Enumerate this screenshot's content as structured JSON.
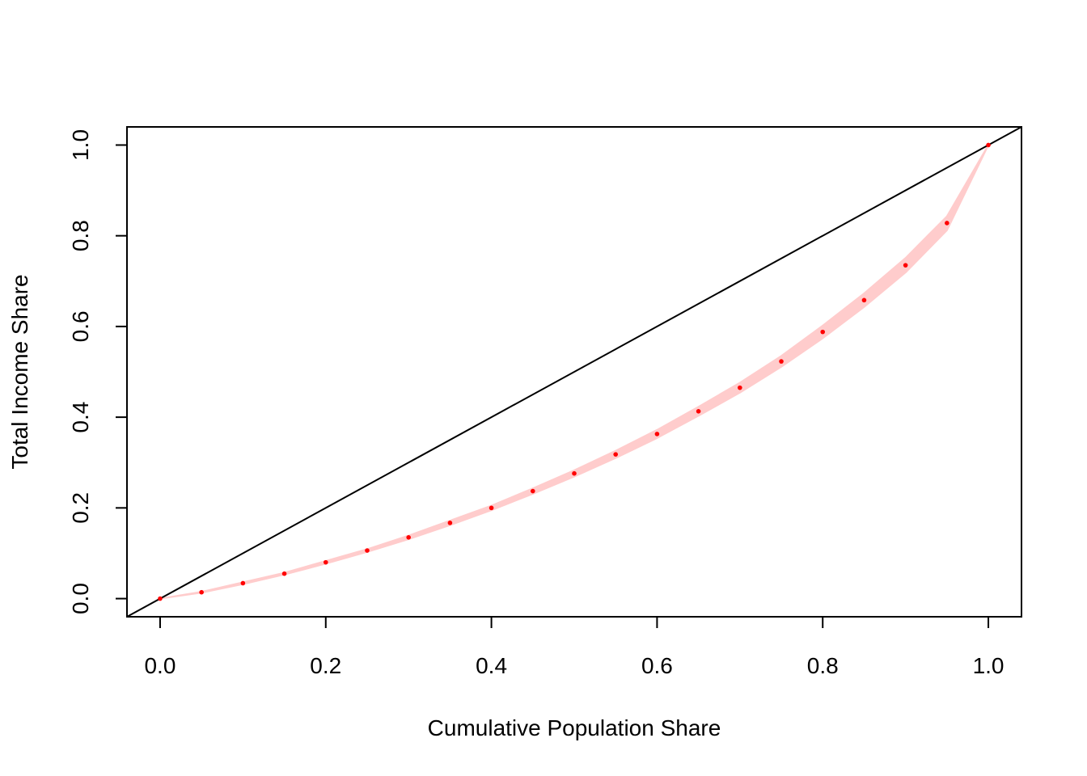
{
  "chart_data": {
    "type": "line",
    "title": "",
    "xlabel": "Cumulative Population Share",
    "ylabel": "Total Income Share",
    "xlim": [
      -0.04,
      1.04
    ],
    "ylim": [
      -0.04,
      1.04
    ],
    "xticks": [
      {
        "value": 0.0,
        "label": "0.0"
      },
      {
        "value": 0.2,
        "label": "0.2"
      },
      {
        "value": 0.4,
        "label": "0.4"
      },
      {
        "value": 0.6,
        "label": "0.6"
      },
      {
        "value": 0.8,
        "label": "0.8"
      },
      {
        "value": 1.0,
        "label": "1.0"
      }
    ],
    "yticks": [
      {
        "value": 0.0,
        "label": "0.0"
      },
      {
        "value": 0.2,
        "label": "0.2"
      },
      {
        "value": 0.4,
        "label": "0.4"
      },
      {
        "value": 0.6,
        "label": "0.6"
      },
      {
        "value": 0.8,
        "label": "0.8"
      },
      {
        "value": 1.0,
        "label": "1.0"
      }
    ],
    "grid": false,
    "equality_line": {
      "x": [
        -0.04,
        1.04
      ],
      "y": [
        -0.04,
        1.04
      ],
      "color": "#000000"
    },
    "series": [
      {
        "x": [
          0.0,
          0.05,
          0.1,
          0.15,
          0.2,
          0.25,
          0.3,
          0.35,
          0.4,
          0.45,
          0.5,
          0.55,
          0.6,
          0.65,
          0.7,
          0.75,
          0.8,
          0.85,
          0.9,
          0.95,
          1.0
        ],
        "y": [
          0.0,
          0.014,
          0.034,
          0.055,
          0.08,
          0.106,
          0.135,
          0.167,
          0.2,
          0.237,
          0.276,
          0.318,
          0.363,
          0.413,
          0.465,
          0.523,
          0.588,
          0.658,
          0.735,
          0.828,
          1.0
        ],
        "lower": [
          0.0,
          0.013,
          0.032,
          0.053,
          0.077,
          0.103,
          0.131,
          0.162,
          0.195,
          0.231,
          0.269,
          0.31,
          0.354,
          0.403,
          0.454,
          0.511,
          0.574,
          0.643,
          0.719,
          0.812,
          1.0
        ],
        "upper": [
          0.0,
          0.015,
          0.036,
          0.057,
          0.083,
          0.109,
          0.139,
          0.172,
          0.205,
          0.243,
          0.283,
          0.326,
          0.372,
          0.423,
          0.476,
          0.535,
          0.602,
          0.673,
          0.751,
          0.843,
          1.0
        ],
        "point_color": "#ff0000",
        "band_color": "#ffcccc"
      }
    ]
  }
}
